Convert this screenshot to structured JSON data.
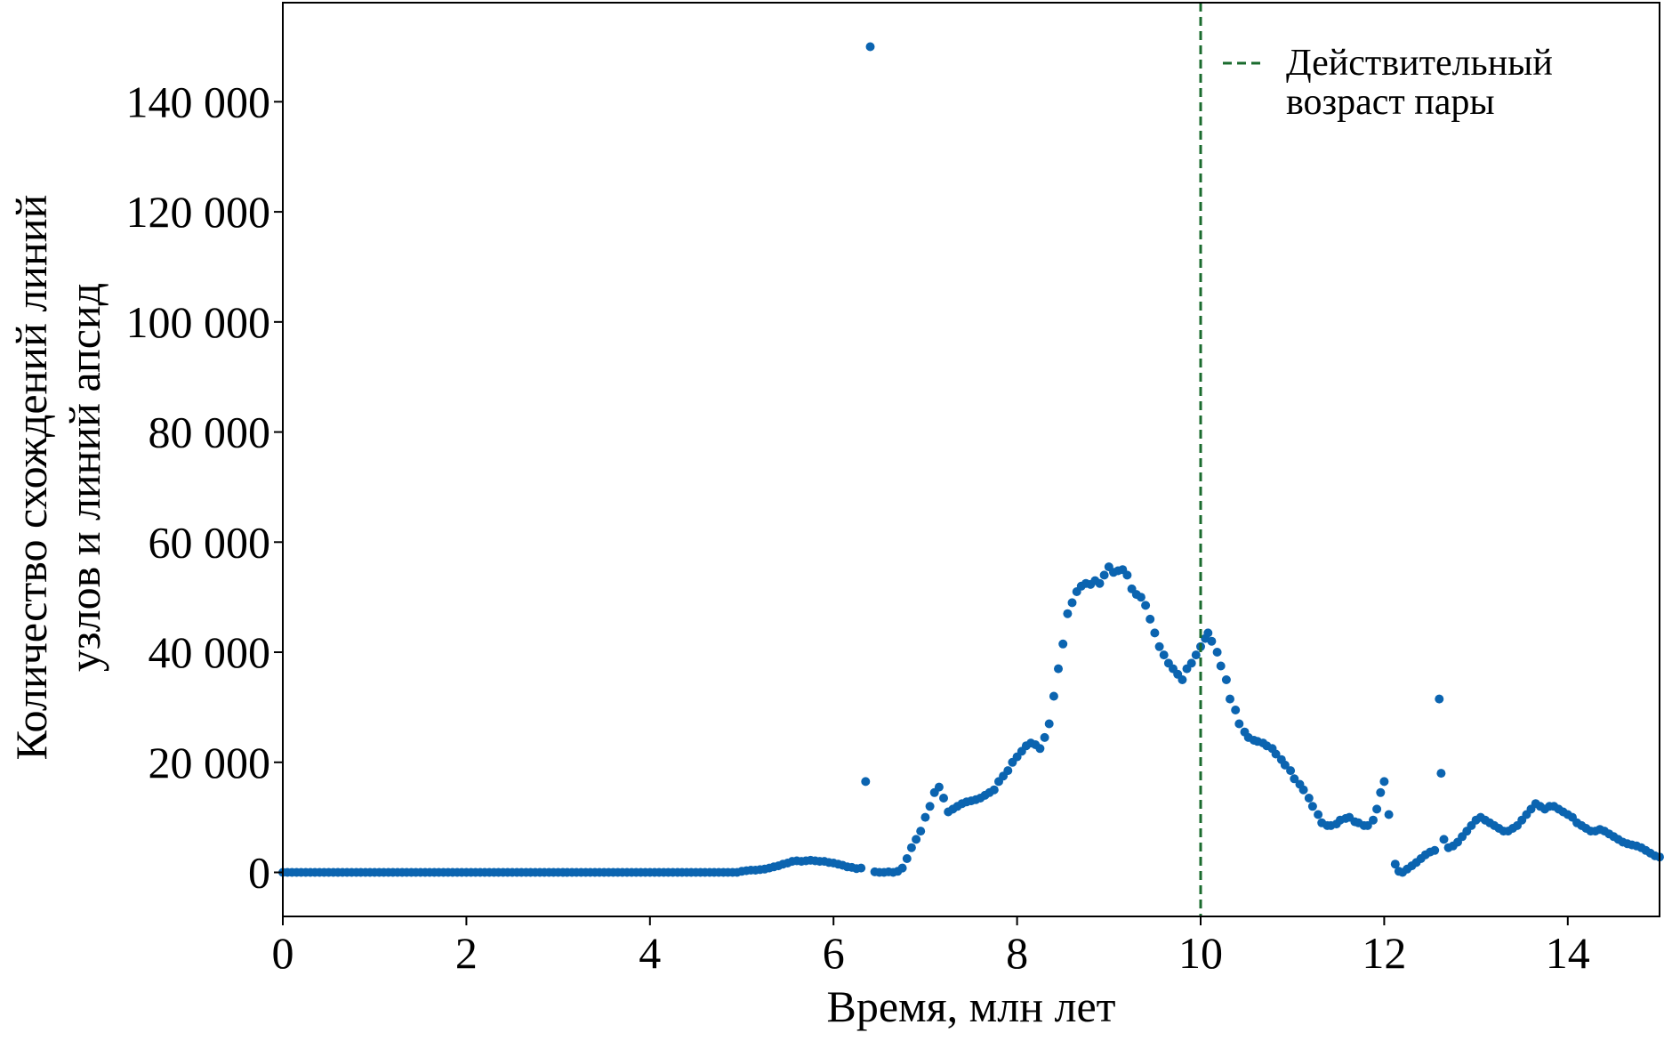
{
  "chart_data": {
    "type": "scatter",
    "title": "",
    "xlabel": "Время, млн лет",
    "ylabel_lines": [
      "Количество схождений линий",
      "узлов и линий апсид"
    ],
    "xlim": [
      0,
      15
    ],
    "ylim": [
      -8000,
      158000
    ],
    "xticks": [
      {
        "value": 0,
        "label": "0"
      },
      {
        "value": 2,
        "label": "2"
      },
      {
        "value": 4,
        "label": "4"
      },
      {
        "value": 6,
        "label": "6"
      },
      {
        "value": 8,
        "label": "8"
      },
      {
        "value": 10,
        "label": "10"
      },
      {
        "value": 12,
        "label": "12"
      },
      {
        "value": 14,
        "label": "14"
      }
    ],
    "yticks": [
      {
        "value": 0,
        "label": "0"
      },
      {
        "value": 20000,
        "label": "20 000"
      },
      {
        "value": 40000,
        "label": "40 000"
      },
      {
        "value": 60000,
        "label": "60 000"
      },
      {
        "value": 80000,
        "label": "80 000"
      },
      {
        "value": 100000,
        "label": "100 000"
      },
      {
        "value": 120000,
        "label": "120 000"
      },
      {
        "value": 140000,
        "label": "140 000"
      }
    ],
    "grid": false,
    "point_color": "#0b64b0",
    "reference_line": {
      "x": 10,
      "color": "#1a6b2e",
      "style": "dashed",
      "legend_lines": [
        "Действительный",
        "возраст пары"
      ]
    },
    "legend_position": "top-right",
    "points": [
      [
        0.0,
        0
      ],
      [
        0.05,
        0
      ],
      [
        0.1,
        0
      ],
      [
        0.15,
        0
      ],
      [
        0.2,
        0
      ],
      [
        0.25,
        0
      ],
      [
        0.3,
        0
      ],
      [
        0.35,
        0
      ],
      [
        0.4,
        0
      ],
      [
        0.45,
        0
      ],
      [
        0.5,
        0
      ],
      [
        0.55,
        0
      ],
      [
        0.6,
        0
      ],
      [
        0.65,
        0
      ],
      [
        0.7,
        0
      ],
      [
        0.75,
        0
      ],
      [
        0.8,
        0
      ],
      [
        0.85,
        0
      ],
      [
        0.9,
        0
      ],
      [
        0.95,
        0
      ],
      [
        1.0,
        0
      ],
      [
        1.05,
        0
      ],
      [
        1.1,
        0
      ],
      [
        1.15,
        0
      ],
      [
        1.2,
        0
      ],
      [
        1.25,
        0
      ],
      [
        1.3,
        0
      ],
      [
        1.35,
        0
      ],
      [
        1.4,
        0
      ],
      [
        1.45,
        0
      ],
      [
        1.5,
        0
      ],
      [
        1.55,
        0
      ],
      [
        1.6,
        0
      ],
      [
        1.65,
        0
      ],
      [
        1.7,
        0
      ],
      [
        1.75,
        0
      ],
      [
        1.8,
        0
      ],
      [
        1.85,
        0
      ],
      [
        1.9,
        0
      ],
      [
        1.95,
        0
      ],
      [
        2.0,
        0
      ],
      [
        2.05,
        0
      ],
      [
        2.1,
        0
      ],
      [
        2.15,
        0
      ],
      [
        2.2,
        0
      ],
      [
        2.25,
        0
      ],
      [
        2.3,
        0
      ],
      [
        2.35,
        0
      ],
      [
        2.4,
        0
      ],
      [
        2.45,
        0
      ],
      [
        2.5,
        0
      ],
      [
        2.55,
        0
      ],
      [
        2.6,
        0
      ],
      [
        2.65,
        0
      ],
      [
        2.7,
        0
      ],
      [
        2.75,
        0
      ],
      [
        2.8,
        0
      ],
      [
        2.85,
        0
      ],
      [
        2.9,
        0
      ],
      [
        2.95,
        0
      ],
      [
        3.0,
        0
      ],
      [
        3.05,
        0
      ],
      [
        3.1,
        0
      ],
      [
        3.15,
        0
      ],
      [
        3.2,
        0
      ],
      [
        3.25,
        0
      ],
      [
        3.3,
        0
      ],
      [
        3.35,
        0
      ],
      [
        3.4,
        0
      ],
      [
        3.45,
        0
      ],
      [
        3.5,
        0
      ],
      [
        3.55,
        0
      ],
      [
        3.6,
        0
      ],
      [
        3.65,
        0
      ],
      [
        3.7,
        0
      ],
      [
        3.75,
        0
      ],
      [
        3.8,
        0
      ],
      [
        3.85,
        0
      ],
      [
        3.9,
        0
      ],
      [
        3.95,
        0
      ],
      [
        4.0,
        0
      ],
      [
        4.05,
        0
      ],
      [
        4.1,
        0
      ],
      [
        4.15,
        0
      ],
      [
        4.2,
        0
      ],
      [
        4.25,
        0
      ],
      [
        4.3,
        0
      ],
      [
        4.35,
        0
      ],
      [
        4.4,
        0
      ],
      [
        4.45,
        0
      ],
      [
        4.5,
        0
      ],
      [
        4.55,
        0
      ],
      [
        4.6,
        0
      ],
      [
        4.65,
        0
      ],
      [
        4.7,
        0
      ],
      [
        4.75,
        0
      ],
      [
        4.8,
        0
      ],
      [
        4.85,
        0
      ],
      [
        4.9,
        0
      ],
      [
        4.95,
        0
      ],
      [
        5.0,
        200
      ],
      [
        5.05,
        300
      ],
      [
        5.1,
        400
      ],
      [
        5.15,
        400
      ],
      [
        5.2,
        500
      ],
      [
        5.25,
        600
      ],
      [
        5.3,
        800
      ],
      [
        5.35,
        1000
      ],
      [
        5.4,
        1200
      ],
      [
        5.45,
        1500
      ],
      [
        5.5,
        1700
      ],
      [
        5.55,
        2000
      ],
      [
        5.6,
        2100
      ],
      [
        5.65,
        2000
      ],
      [
        5.7,
        2100
      ],
      [
        5.75,
        2200
      ],
      [
        5.8,
        2100
      ],
      [
        5.85,
        2000
      ],
      [
        5.9,
        2000
      ],
      [
        5.95,
        1800
      ],
      [
        6.0,
        1700
      ],
      [
        6.05,
        1500
      ],
      [
        6.1,
        1300
      ],
      [
        6.15,
        1000
      ],
      [
        6.2,
        900
      ],
      [
        6.25,
        700
      ],
      [
        6.3,
        800
      ],
      [
        6.35,
        16500
      ],
      [
        6.4,
        150000
      ],
      [
        6.45,
        100
      ],
      [
        6.5,
        0
      ],
      [
        6.55,
        0
      ],
      [
        6.6,
        100
      ],
      [
        6.65,
        0
      ],
      [
        6.7,
        200
      ],
      [
        6.75,
        800
      ],
      [
        6.8,
        2500
      ],
      [
        6.85,
        4500
      ],
      [
        6.9,
        6000
      ],
      [
        6.95,
        7500
      ],
      [
        7.0,
        10000
      ],
      [
        7.05,
        12000
      ],
      [
        7.1,
        14500
      ],
      [
        7.15,
        15500
      ],
      [
        7.2,
        13500
      ],
      [
        7.25,
        11000
      ],
      [
        7.3,
        11500
      ],
      [
        7.35,
        12000
      ],
      [
        7.4,
        12500
      ],
      [
        7.45,
        12800
      ],
      [
        7.5,
        13000
      ],
      [
        7.55,
        13200
      ],
      [
        7.6,
        13500
      ],
      [
        7.65,
        14000
      ],
      [
        7.7,
        14500
      ],
      [
        7.75,
        15000
      ],
      [
        7.8,
        16500
      ],
      [
        7.85,
        17500
      ],
      [
        7.9,
        18500
      ],
      [
        7.95,
        20000
      ],
      [
        8.0,
        21000
      ],
      [
        8.05,
        22000
      ],
      [
        8.1,
        23000
      ],
      [
        8.15,
        23500
      ],
      [
        8.2,
        23200
      ],
      [
        8.25,
        22500
      ],
      [
        8.3,
        24500
      ],
      [
        8.35,
        27000
      ],
      [
        8.4,
        32000
      ],
      [
        8.45,
        37000
      ],
      [
        8.5,
        41500
      ],
      [
        8.55,
        47000
      ],
      [
        8.6,
        49000
      ],
      [
        8.65,
        51000
      ],
      [
        8.7,
        52000
      ],
      [
        8.75,
        52500
      ],
      [
        8.8,
        52300
      ],
      [
        8.85,
        53000
      ],
      [
        8.9,
        52500
      ],
      [
        8.95,
        54000
      ],
      [
        9.0,
        55500
      ],
      [
        9.05,
        54500
      ],
      [
        9.1,
        54800
      ],
      [
        9.15,
        55000
      ],
      [
        9.2,
        54000
      ],
      [
        9.25,
        51500
      ],
      [
        9.3,
        50500
      ],
      [
        9.35,
        50000
      ],
      [
        9.4,
        48500
      ],
      [
        9.45,
        46000
      ],
      [
        9.5,
        43500
      ],
      [
        9.55,
        41000
      ],
      [
        9.6,
        39500
      ],
      [
        9.65,
        38000
      ],
      [
        9.7,
        37000
      ],
      [
        9.75,
        36000
      ],
      [
        9.8,
        35000
      ],
      [
        9.85,
        37000
      ],
      [
        9.9,
        38000
      ],
      [
        9.95,
        39500
      ],
      [
        10.0,
        41000
      ],
      [
        10.05,
        42500
      ],
      [
        10.08,
        43500
      ],
      [
        10.12,
        42000
      ],
      [
        10.18,
        40000
      ],
      [
        10.22,
        37500
      ],
      [
        10.28,
        35000
      ],
      [
        10.32,
        31500
      ],
      [
        10.38,
        29500
      ],
      [
        10.42,
        27000
      ],
      [
        10.48,
        25500
      ],
      [
        10.52,
        24500
      ],
      [
        10.58,
        24000
      ],
      [
        10.62,
        23800
      ],
      [
        10.68,
        23500
      ],
      [
        10.72,
        23000
      ],
      [
        10.78,
        22500
      ],
      [
        10.82,
        21500
      ],
      [
        10.88,
        20500
      ],
      [
        10.92,
        19500
      ],
      [
        10.98,
        18500
      ],
      [
        11.02,
        17000
      ],
      [
        11.08,
        16000
      ],
      [
        11.12,
        15000
      ],
      [
        11.18,
        13500
      ],
      [
        11.22,
        12000
      ],
      [
        11.28,
        10500
      ],
      [
        11.32,
        9000
      ],
      [
        11.38,
        8500
      ],
      [
        11.42,
        8500
      ],
      [
        11.48,
        8800
      ],
      [
        11.52,
        9500
      ],
      [
        11.58,
        9800
      ],
      [
        11.62,
        10000
      ],
      [
        11.68,
        9200
      ],
      [
        11.72,
        9000
      ],
      [
        11.78,
        8500
      ],
      [
        11.82,
        8500
      ],
      [
        11.88,
        9500
      ],
      [
        11.92,
        11500
      ],
      [
        11.96,
        14500
      ],
      [
        12.0,
        16500
      ],
      [
        12.05,
        10500
      ],
      [
        12.12,
        1500
      ],
      [
        12.16,
        200
      ],
      [
        12.2,
        0
      ],
      [
        12.25,
        600
      ],
      [
        12.3,
        1200
      ],
      [
        12.35,
        1800
      ],
      [
        12.4,
        2500
      ],
      [
        12.45,
        3200
      ],
      [
        12.5,
        3700
      ],
      [
        12.55,
        4000
      ],
      [
        12.6,
        31500
      ],
      [
        12.62,
        18000
      ],
      [
        12.65,
        6000
      ],
      [
        12.7,
        4500
      ],
      [
        12.75,
        4800
      ],
      [
        12.8,
        5500
      ],
      [
        12.85,
        6500
      ],
      [
        12.9,
        7500
      ],
      [
        12.95,
        8500
      ],
      [
        13.0,
        9500
      ],
      [
        13.05,
        10000
      ],
      [
        13.1,
        9500
      ],
      [
        13.15,
        9000
      ],
      [
        13.2,
        8500
      ],
      [
        13.25,
        8000
      ],
      [
        13.3,
        7500
      ],
      [
        13.35,
        7500
      ],
      [
        13.4,
        8000
      ],
      [
        13.45,
        8500
      ],
      [
        13.5,
        9500
      ],
      [
        13.55,
        10500
      ],
      [
        13.6,
        11500
      ],
      [
        13.65,
        12500
      ],
      [
        13.7,
        12000
      ],
      [
        13.75,
        11500
      ],
      [
        13.8,
        12000
      ],
      [
        13.85,
        12000
      ],
      [
        13.9,
        11500
      ],
      [
        13.95,
        11000
      ],
      [
        14.0,
        10500
      ],
      [
        14.05,
        10000
      ],
      [
        14.1,
        9000
      ],
      [
        14.15,
        8500
      ],
      [
        14.2,
        8000
      ],
      [
        14.25,
        7500
      ],
      [
        14.3,
        7500
      ],
      [
        14.35,
        7800
      ],
      [
        14.4,
        7500
      ],
      [
        14.45,
        7000
      ],
      [
        14.5,
        6500
      ],
      [
        14.55,
        6000
      ],
      [
        14.6,
        5500
      ],
      [
        14.65,
        5200
      ],
      [
        14.7,
        5000
      ],
      [
        14.75,
        4800
      ],
      [
        14.8,
        4500
      ],
      [
        14.85,
        4000
      ],
      [
        14.9,
        3500
      ],
      [
        14.95,
        3000
      ],
      [
        15.0,
        2800
      ]
    ]
  }
}
